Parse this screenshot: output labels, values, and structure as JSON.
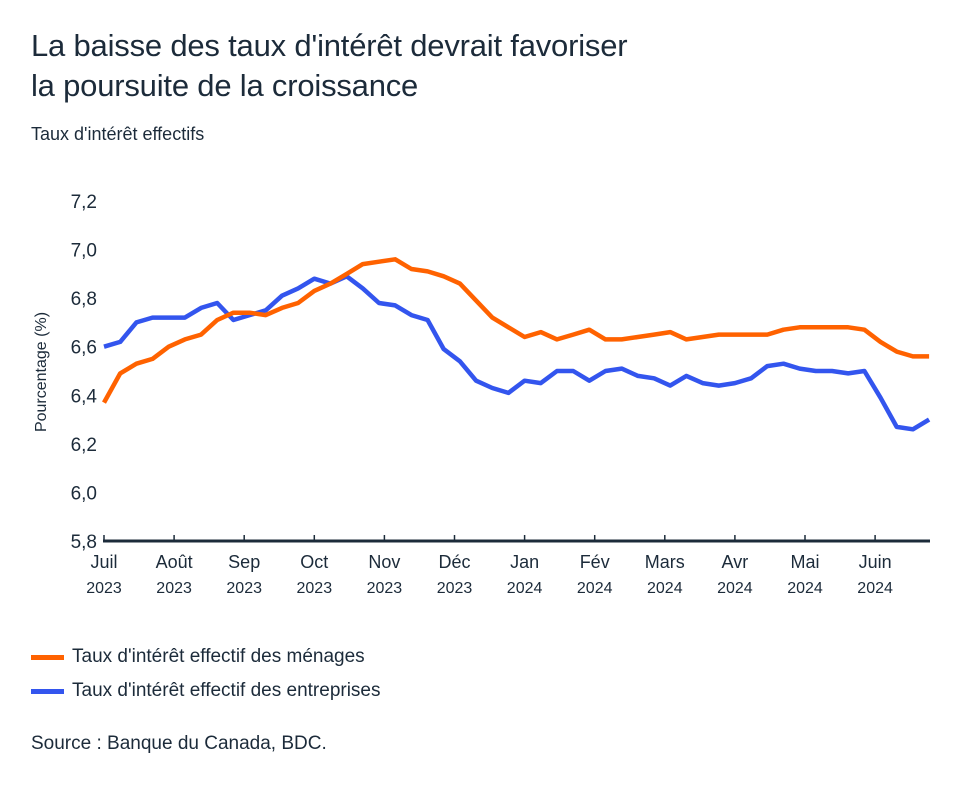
{
  "header": {
    "title_line1": "La baisse des taux d'intérêt devrait favoriser",
    "title_line2": "la poursuite de la croissance",
    "subtitle": "Taux d'intérêt effectifs"
  },
  "footer": {
    "source": "Source : Banque du Canada, BDC."
  },
  "chart_data": {
    "type": "line",
    "title": "La baisse des taux d'intérêt devrait favoriser la poursuite de la croissance",
    "subtitle": "Taux d'intérêt effectifs",
    "xlabel": "",
    "ylabel": "Pourcentage (%)",
    "ylim": [
      5.8,
      7.2
    ],
    "yticks": [
      "7,2",
      "7,0",
      "6,8",
      "6,6",
      "6,4",
      "6,2",
      "6,0",
      "5,8"
    ],
    "ytick_values": [
      7.2,
      7.0,
      6.8,
      6.6,
      6.4,
      6.2,
      6.0,
      5.8
    ],
    "xticks": [
      {
        "month": "Juil",
        "year": "2023"
      },
      {
        "month": "Août",
        "year": "2023"
      },
      {
        "month": "Sep",
        "year": "2023"
      },
      {
        "month": "Oct",
        "year": "2023"
      },
      {
        "month": "Nov",
        "year": "2023"
      },
      {
        "month": "Déc",
        "year": "2023"
      },
      {
        "month": "Jan",
        "year": "2024"
      },
      {
        "month": "Fév",
        "year": "2024"
      },
      {
        "month": "Mars",
        "year": "2024"
      },
      {
        "month": "Avr",
        "year": "2024"
      },
      {
        "month": "Mai",
        "year": "2024"
      },
      {
        "month": "Juin",
        "year": "2024"
      }
    ],
    "x_range_months": [
      0,
      11.77
    ],
    "frequency": "weekly",
    "grid": false,
    "legend_position": "bottom-left",
    "series": [
      {
        "name": "Taux d'intérêt effectif des ménages",
        "color": "#FF6200",
        "values": [
          6.37,
          6.49,
          6.53,
          6.55,
          6.6,
          6.63,
          6.65,
          6.71,
          6.74,
          6.74,
          6.73,
          6.76,
          6.78,
          6.83,
          6.86,
          6.9,
          6.94,
          6.95,
          6.96,
          6.92,
          6.91,
          6.89,
          6.86,
          6.79,
          6.72,
          6.68,
          6.64,
          6.66,
          6.63,
          6.65,
          6.67,
          6.63,
          6.63,
          6.64,
          6.65,
          6.66,
          6.63,
          6.64,
          6.65,
          6.65,
          6.65,
          6.65,
          6.67,
          6.68,
          6.68,
          6.68,
          6.68,
          6.67,
          6.62,
          6.58,
          6.56,
          6.56
        ]
      },
      {
        "name": "Taux d'intérêt effectif des entreprises",
        "color": "#3355EE",
        "values": [
          6.6,
          6.62,
          6.7,
          6.72,
          6.72,
          6.72,
          6.76,
          6.78,
          6.71,
          6.73,
          6.75,
          6.81,
          6.84,
          6.88,
          6.86,
          6.89,
          6.84,
          6.78,
          6.77,
          6.73,
          6.71,
          6.59,
          6.54,
          6.46,
          6.43,
          6.41,
          6.46,
          6.45,
          6.5,
          6.5,
          6.46,
          6.5,
          6.51,
          6.48,
          6.47,
          6.44,
          6.48,
          6.45,
          6.44,
          6.45,
          6.47,
          6.52,
          6.53,
          6.51,
          6.5,
          6.5,
          6.49,
          6.5,
          6.39,
          6.27,
          6.26,
          6.3
        ]
      }
    ]
  }
}
